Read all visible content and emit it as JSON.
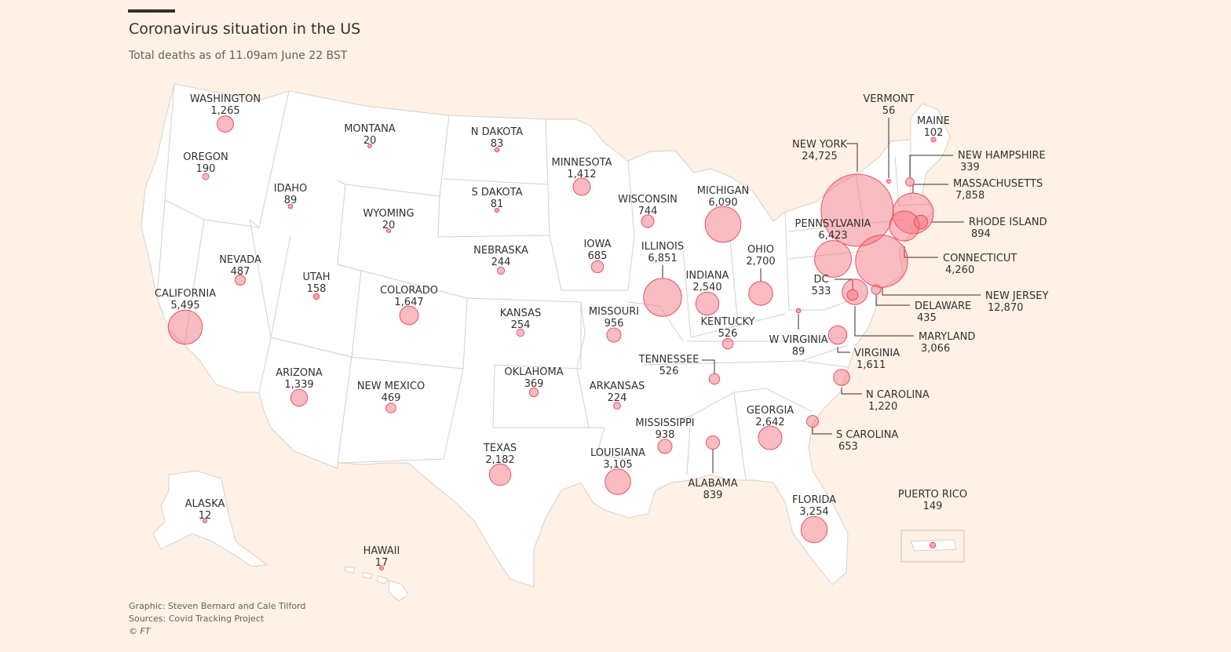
{
  "header": {
    "title": "Coronavirus situation in the US",
    "subtitle": "Total deaths as of 11.09am June 22 BST"
  },
  "footer": {
    "graphic": "Graphic: Steven Bernard and Cale Tilford",
    "sources": "Sources: Covid Tracking Project",
    "copyright": "© FT"
  },
  "colors": {
    "bubble": "#f36a7a",
    "bubble_stroke": "#e8505e",
    "background": "#fff1e5",
    "land": "#ffffff",
    "border": "#d6d0cb"
  },
  "states": [
    {
      "id": "washington",
      "name": "WASHINGTON",
      "deaths": "1,265",
      "value": 1265
    },
    {
      "id": "oregon",
      "name": "OREGON",
      "deaths": "190",
      "value": 190
    },
    {
      "id": "california",
      "name": "CALIFORNIA",
      "deaths": "5,495",
      "value": 5495
    },
    {
      "id": "idaho",
      "name": "IDAHO",
      "deaths": "89",
      "value": 89
    },
    {
      "id": "nevada",
      "name": "NEVADA",
      "deaths": "487",
      "value": 487
    },
    {
      "id": "montana",
      "name": "MONTANA",
      "deaths": "20",
      "value": 20
    },
    {
      "id": "wyoming",
      "name": "WYOMING",
      "deaths": "20",
      "value": 20
    },
    {
      "id": "utah",
      "name": "UTAH",
      "deaths": "158",
      "value": 158
    },
    {
      "id": "arizona",
      "name": "ARIZONA",
      "deaths": "1,339",
      "value": 1339
    },
    {
      "id": "colorado",
      "name": "COLORADO",
      "deaths": "1,647",
      "value": 1647
    },
    {
      "id": "new-mexico",
      "name": "NEW MEXICO",
      "deaths": "469",
      "value": 469
    },
    {
      "id": "n-dakota",
      "name": "N DAKOTA",
      "deaths": "83",
      "value": 83
    },
    {
      "id": "s-dakota",
      "name": "S DAKOTA",
      "deaths": "81",
      "value": 81
    },
    {
      "id": "nebraska",
      "name": "NEBRASKA",
      "deaths": "244",
      "value": 244
    },
    {
      "id": "kansas",
      "name": "KANSAS",
      "deaths": "254",
      "value": 254
    },
    {
      "id": "oklahoma",
      "name": "OKLAHOMA",
      "deaths": "369",
      "value": 369
    },
    {
      "id": "texas",
      "name": "TEXAS",
      "deaths": "2,182",
      "value": 2182
    },
    {
      "id": "minnesota",
      "name": "MINNESOTA",
      "deaths": "1,412",
      "value": 1412
    },
    {
      "id": "iowa",
      "name": "IOWA",
      "deaths": "685",
      "value": 685
    },
    {
      "id": "missouri",
      "name": "MISSOURI",
      "deaths": "956",
      "value": 956
    },
    {
      "id": "arkansas",
      "name": "ARKANSAS",
      "deaths": "224",
      "value": 224
    },
    {
      "id": "louisiana",
      "name": "LOUISIANA",
      "deaths": "3,105",
      "value": 3105
    },
    {
      "id": "wisconsin",
      "name": "WISCONSIN",
      "deaths": "744",
      "value": 744
    },
    {
      "id": "illinois",
      "name": "ILLINOIS",
      "deaths": "6,851",
      "value": 6851
    },
    {
      "id": "michigan",
      "name": "MICHIGAN",
      "deaths": "6,090",
      "value": 6090
    },
    {
      "id": "indiana",
      "name": "INDIANA",
      "deaths": "2,540",
      "value": 2540
    },
    {
      "id": "ohio",
      "name": "OHIO",
      "deaths": "2,700",
      "value": 2700
    },
    {
      "id": "kentucky",
      "name": "KENTUCKY",
      "deaths": "526",
      "value": 526
    },
    {
      "id": "tennessee",
      "name": "TENNESSEE",
      "deaths": "526",
      "value": 526
    },
    {
      "id": "mississippi",
      "name": "MISSISSIPPI",
      "deaths": "938",
      "value": 938
    },
    {
      "id": "alabama",
      "name": "ALABAMA",
      "deaths": "839",
      "value": 839
    },
    {
      "id": "georgia",
      "name": "GEORGIA",
      "deaths": "2,642",
      "value": 2642
    },
    {
      "id": "florida",
      "name": "FLORIDA",
      "deaths": "3,254",
      "value": 3254
    },
    {
      "id": "s-carolina",
      "name": "S CAROLINA",
      "deaths": "653",
      "value": 653
    },
    {
      "id": "n-carolina",
      "name": "N CAROLINA",
      "deaths": "1,220",
      "value": 1220
    },
    {
      "id": "virginia",
      "name": "VIRGINIA",
      "deaths": "1,611",
      "value": 1611
    },
    {
      "id": "w-virginia",
      "name": "W VIRGINIA",
      "deaths": "89",
      "value": 89
    },
    {
      "id": "pennsylvania",
      "name": "PENNSYLVANIA",
      "deaths": "6,423",
      "value": 6423
    },
    {
      "id": "new-york",
      "name": "NEW YORK",
      "deaths": "24,725",
      "value": 24725
    },
    {
      "id": "vermont",
      "name": "VERMONT",
      "deaths": "56",
      "value": 56
    },
    {
      "id": "maine",
      "name": "MAINE",
      "deaths": "102",
      "value": 102
    },
    {
      "id": "new-hampshire",
      "name": "NEW HAMPSHIRE",
      "deaths": "339",
      "value": 339
    },
    {
      "id": "massachusetts",
      "name": "MASSACHUSETTS",
      "deaths": "7,858",
      "value": 7858
    },
    {
      "id": "rhode-island",
      "name": "RHODE ISLAND",
      "deaths": "894",
      "value": 894
    },
    {
      "id": "connecticut",
      "name": "CONNECTICUT",
      "deaths": "4,260",
      "value": 4260
    },
    {
      "id": "new-jersey",
      "name": "NEW JERSEY",
      "deaths": "12,870",
      "value": 12870
    },
    {
      "id": "delaware",
      "name": "DELAWARE",
      "deaths": "435",
      "value": 435
    },
    {
      "id": "maryland",
      "name": "MARYLAND",
      "deaths": "3,066",
      "value": 3066
    },
    {
      "id": "dc",
      "name": "DC",
      "deaths": "533",
      "value": 533
    },
    {
      "id": "alaska",
      "name": "ALASKA",
      "deaths": "12",
      "value": 12
    },
    {
      "id": "hawaii",
      "name": "HAWAII",
      "deaths": "17",
      "value": 17
    },
    {
      "id": "puerto-rico",
      "name": "PUERTO RICO",
      "deaths": "149",
      "value": 149
    }
  ]
}
